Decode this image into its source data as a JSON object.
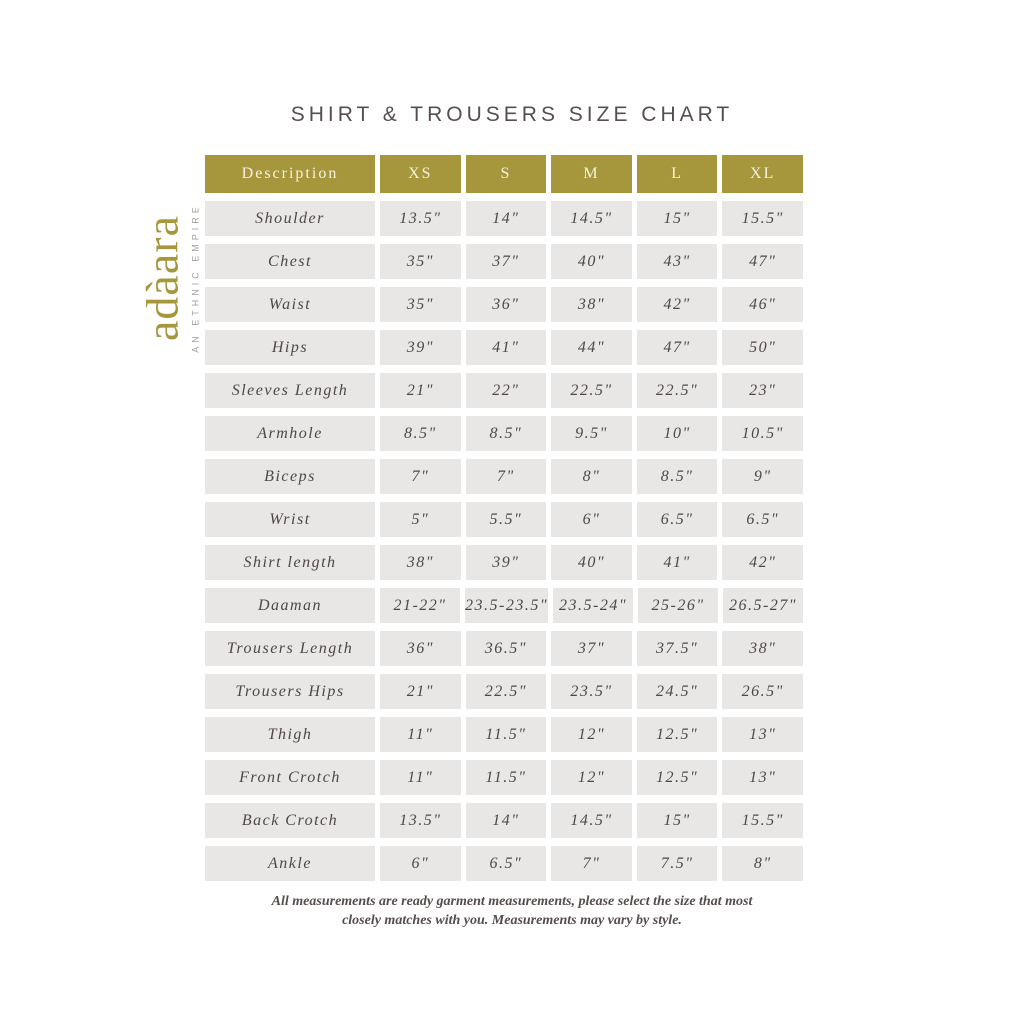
{
  "title": "SHIRT & TROUSERS SIZE CHART",
  "logo": {
    "wordmark": "adàara",
    "tagline": "AN ETHNIC EMPIRE"
  },
  "colors": {
    "accent_gold": "#a6973c",
    "row_background": "#e8e7e5",
    "header_text": "#f7f2e0",
    "body_text": "#4f4745",
    "title_text": "#564f4d"
  },
  "chart_data": {
    "type": "table",
    "title": "SHIRT & TROUSERS SIZE CHART",
    "columns": [
      "Description",
      "XS",
      "S",
      "M",
      "L",
      "XL"
    ],
    "rows": [
      [
        "Shoulder",
        "13.5\"",
        "14\"",
        "14.5\"",
        "15\"",
        "15.5\""
      ],
      [
        "Chest",
        "35\"",
        "37\"",
        "40\"",
        "43\"",
        "47\""
      ],
      [
        "Waist",
        "35\"",
        "36\"",
        "38\"",
        "42\"",
        "46\""
      ],
      [
        "Hips",
        "39\"",
        "41\"",
        "44\"",
        "47\"",
        "50\""
      ],
      [
        "Sleeves Length",
        "21\"",
        "22\"",
        "22.5\"",
        "22.5\"",
        "23\""
      ],
      [
        "Armhole",
        "8.5\"",
        "8.5\"",
        "9.5\"",
        "10\"",
        "10.5\""
      ],
      [
        "Biceps",
        "7\"",
        "7\"",
        "8\"",
        "8.5\"",
        "9\""
      ],
      [
        "Wrist",
        "5\"",
        "5.5\"",
        "6\"",
        "6.5\"",
        "6.5\""
      ],
      [
        "Shirt length",
        "38\"",
        "39\"",
        "40\"",
        "41\"",
        "42\""
      ],
      [
        "Daaman",
        "21-22\"",
        "23.5-23.5\"",
        "23.5-24\"",
        "25-26\"",
        "26.5-27\""
      ],
      [
        "Trousers Length",
        "36\"",
        "36.5\"",
        "37\"",
        "37.5\"",
        "38\""
      ],
      [
        "Trousers Hips",
        "21\"",
        "22.5\"",
        "23.5\"",
        "24.5\"",
        "26.5\""
      ],
      [
        "Thigh",
        "11\"",
        "11.5\"",
        "12\"",
        "12.5\"",
        "13\""
      ],
      [
        "Front Crotch",
        "11\"",
        "11.5\"",
        "12\"",
        "12.5\"",
        "13\""
      ],
      [
        "Back Crotch",
        "13.5\"",
        "14\"",
        "14.5\"",
        "15\"",
        "15.5\""
      ],
      [
        "Ankle",
        "6\"",
        "6.5\"",
        "7\"",
        "7.5\"",
        "8\""
      ]
    ]
  },
  "footnote": {
    "line1": "All measurements are ready garment measurements, please select the size that most",
    "line2": "closely matches with you. Measurements may vary by style."
  }
}
